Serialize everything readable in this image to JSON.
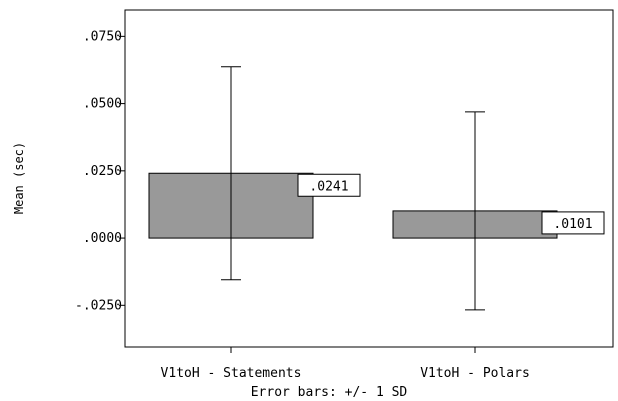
{
  "chart_data": {
    "type": "bar",
    "categories": [
      "V1toH - Statements",
      "V1toH - Polars"
    ],
    "values": [
      0.0241,
      0.0101
    ],
    "data_labels": [
      ".0241",
      ".0101"
    ],
    "error_bars": {
      "type": "+/- 1 SD",
      "lower": [
        -0.0155,
        -0.0267
      ],
      "upper": [
        0.0637,
        0.0469
      ]
    },
    "xlabel": "",
    "ylabel": "Mean (sec)",
    "note": "Error bars: +/- 1 SD",
    "ylim": [
      -0.0405,
      0.0848
    ],
    "yticks": [
      0.075,
      0.05,
      0.025,
      0.0,
      -0.025
    ],
    "ytick_labels": [
      ".0750",
      ".0500",
      ".0250",
      ".0000",
      "-.0250"
    ],
    "grid": false,
    "legend": "none",
    "colors": {
      "bar": "#999999",
      "axis": "#000000",
      "background": "#ffffff"
    }
  }
}
